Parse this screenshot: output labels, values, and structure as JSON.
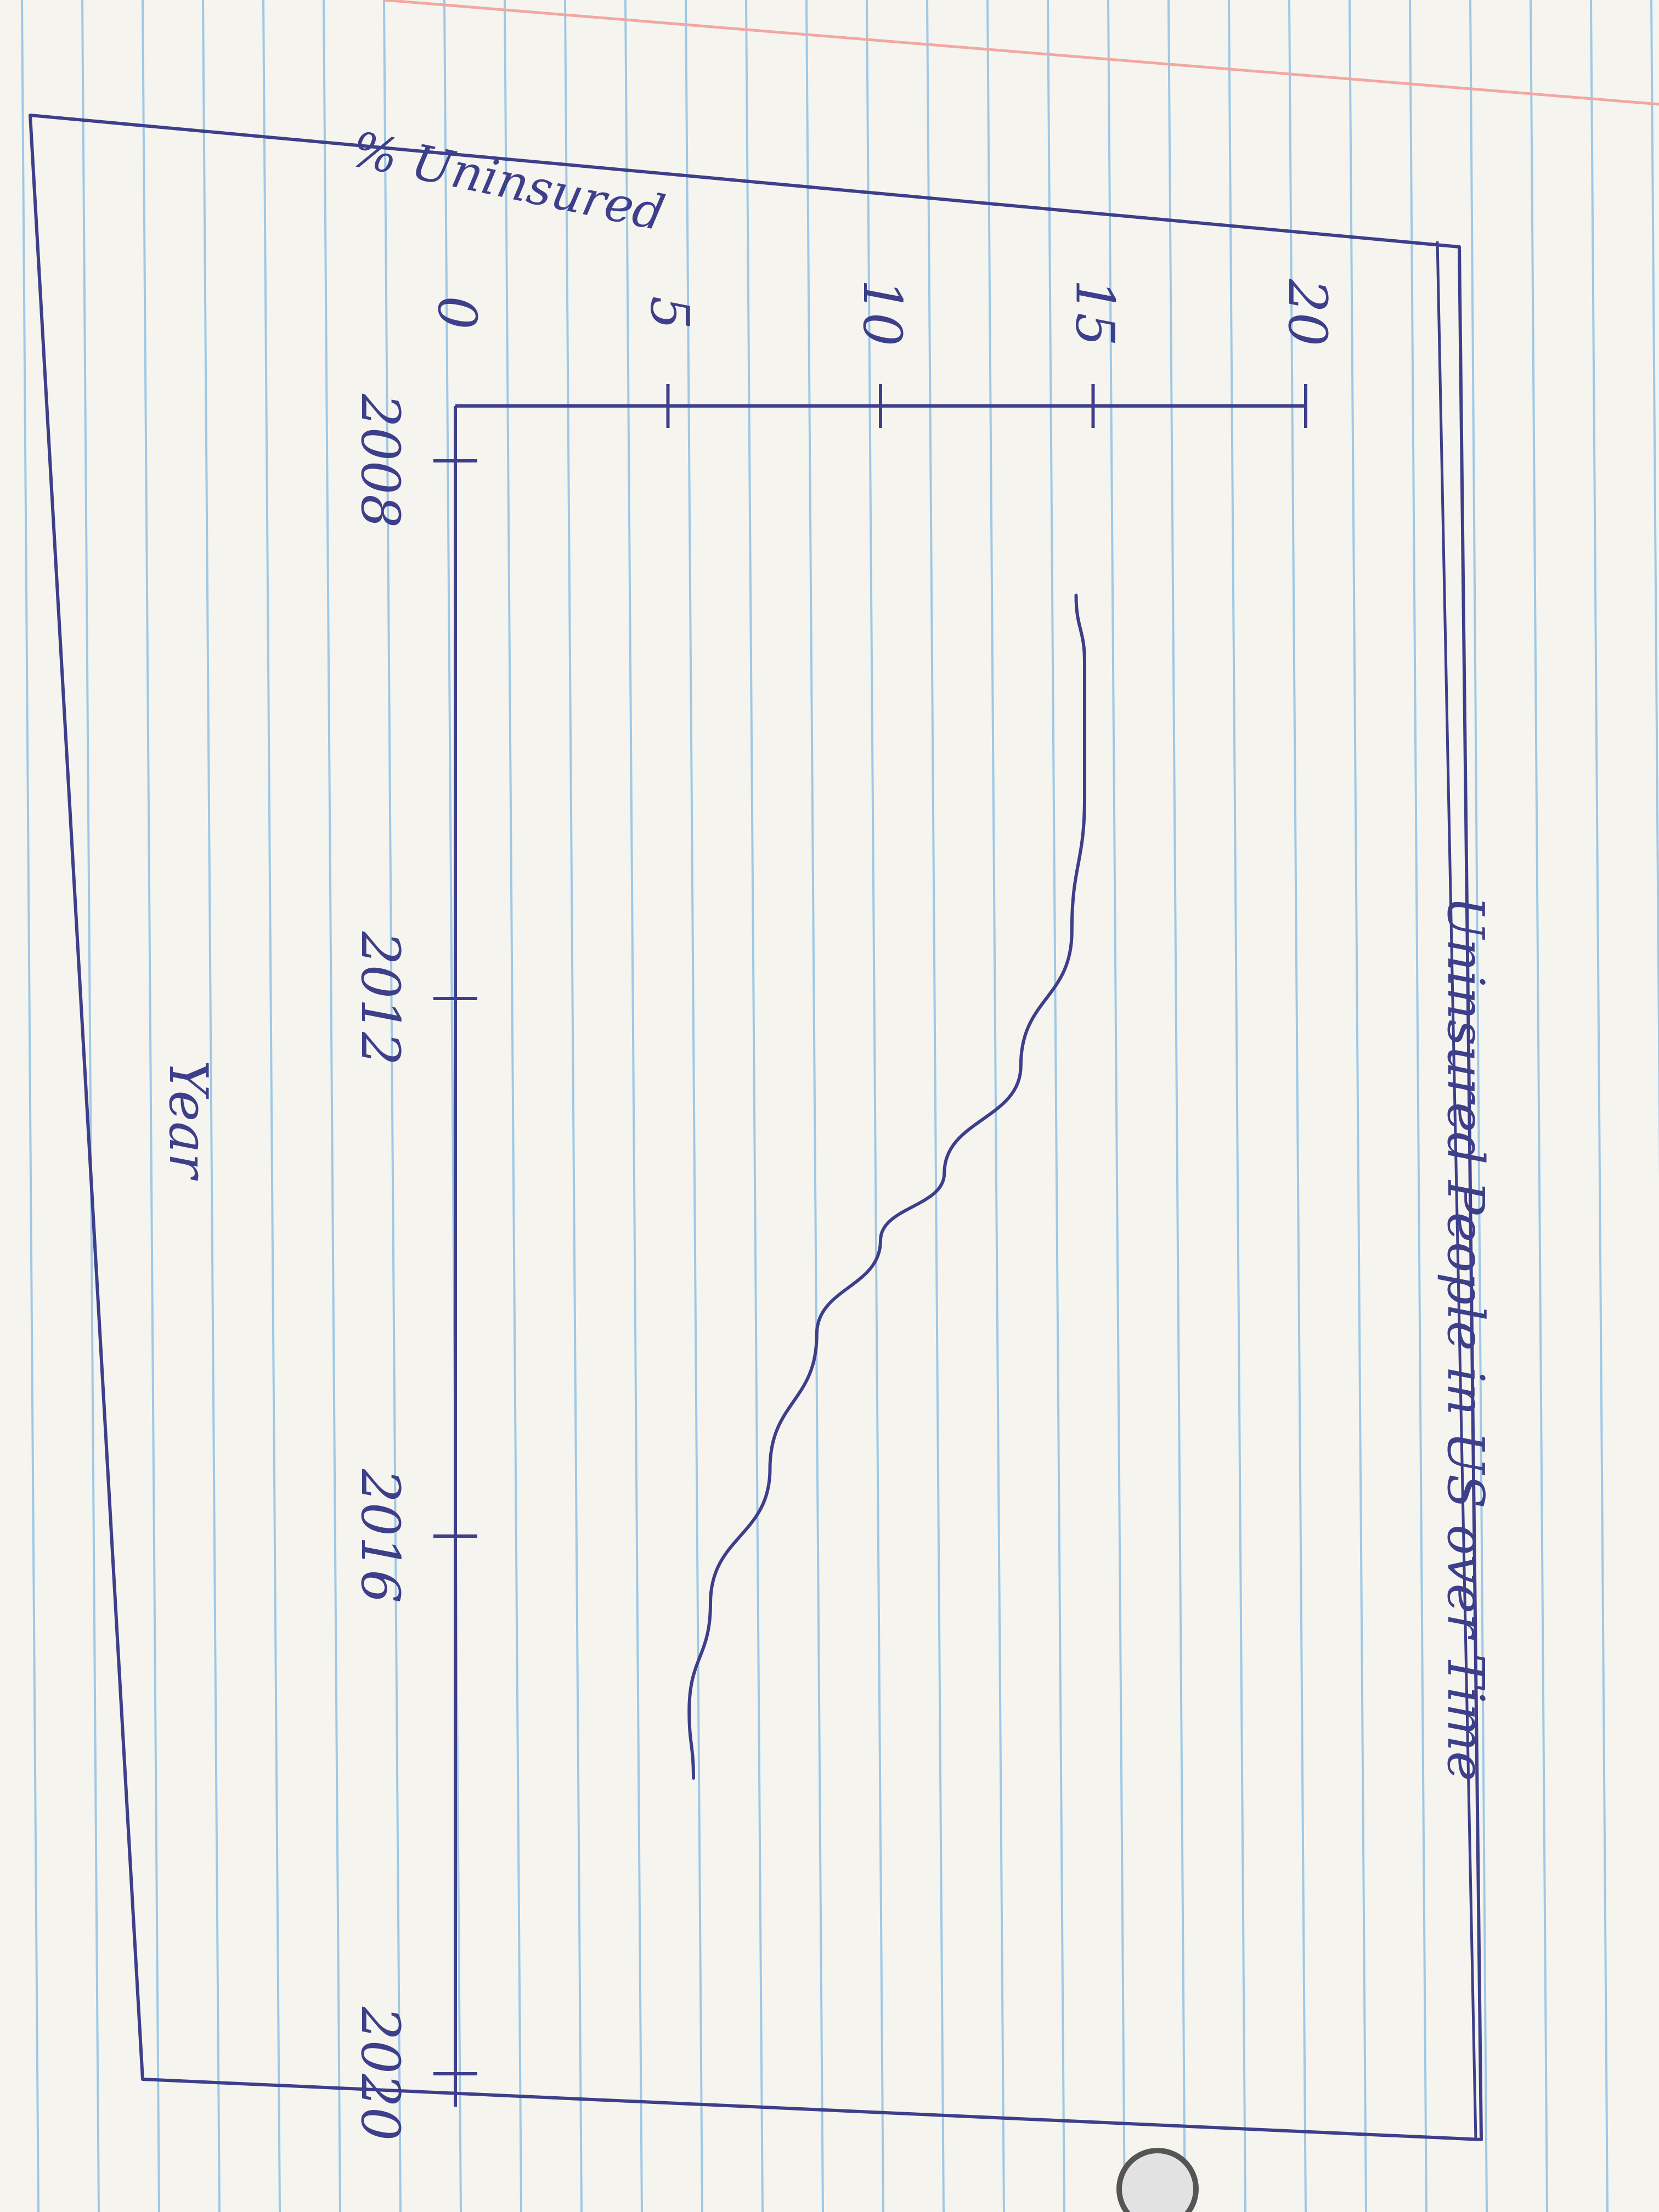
{
  "colors": {
    "paper": "#f6f4ee",
    "rule_line": "#9fc8e6",
    "margin_line": "#f0a8a0",
    "ink": "#3d3f8a"
  },
  "chart_data": {
    "type": "line",
    "orientation": "rotated 90° clockwise (hand-drawn sketch)",
    "title": "Uninsured People in US over Time",
    "xlabel": "Year",
    "ylabel": "% Uninsured",
    "x_ticks": [
      "2008",
      "2012",
      "2016",
      "2020"
    ],
    "y_ticks": [
      "0",
      "5",
      "10",
      "15",
      "20"
    ],
    "xlim": [
      2008,
      2020
    ],
    "ylim": [
      0,
      20
    ],
    "grid": false,
    "legend": "none",
    "series": [
      {
        "x": [
          2009.0,
          2009.5,
          2010.5,
          2011.5,
          2012.5,
          2013.3,
          2013.8,
          2014.5,
          2015.5,
          2016.5,
          2017.3,
          2017.8
        ],
        "y": [
          14.6,
          14.8,
          14.8,
          14.5,
          13.3,
          11.5,
          10.0,
          8.5,
          7.4,
          6.0,
          5.5,
          5.6
        ]
      }
    ]
  }
}
